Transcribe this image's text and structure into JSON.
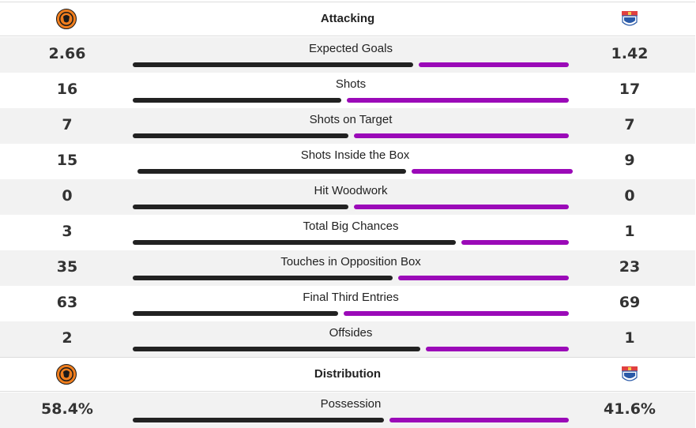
{
  "colors": {
    "home_bar": "#222222",
    "away_bar": "#9b0ab8"
  },
  "home_logo_icon": "dundee-united-crest-icon",
  "away_logo_icon": "kilmarnock-crest-icon",
  "sections": [
    {
      "title": "Attacking",
      "stats": [
        {
          "label": "Expected Goals",
          "home": "2.66",
          "away": "1.42",
          "home_share": 0.652
        },
        {
          "label": "Shots",
          "home": "16",
          "away": "17",
          "home_share": 0.485
        },
        {
          "label": "Shots on Target",
          "home": "7",
          "away": "7",
          "home_share": 0.5
        },
        {
          "label": "Shots Inside the Box",
          "home": "15",
          "away": "9",
          "home_share": 0.625
        },
        {
          "label": "Hit Woodwork",
          "home": "0",
          "away": "0",
          "home_share": 0.5
        },
        {
          "label": "Total Big Chances",
          "home": "3",
          "away": "1",
          "home_share": 0.75
        },
        {
          "label": "Touches in Opposition Box",
          "home": "35",
          "away": "23",
          "home_share": 0.603
        },
        {
          "label": "Final Third Entries",
          "home": "63",
          "away": "69",
          "home_share": 0.477
        },
        {
          "label": "Offsides",
          "home": "2",
          "away": "1",
          "home_share": 0.667
        }
      ]
    },
    {
      "title": "Distribution",
      "stats": [
        {
          "label": "Possession",
          "home": "58.4%",
          "away": "41.6%",
          "home_share": 0.584
        }
      ]
    }
  ]
}
